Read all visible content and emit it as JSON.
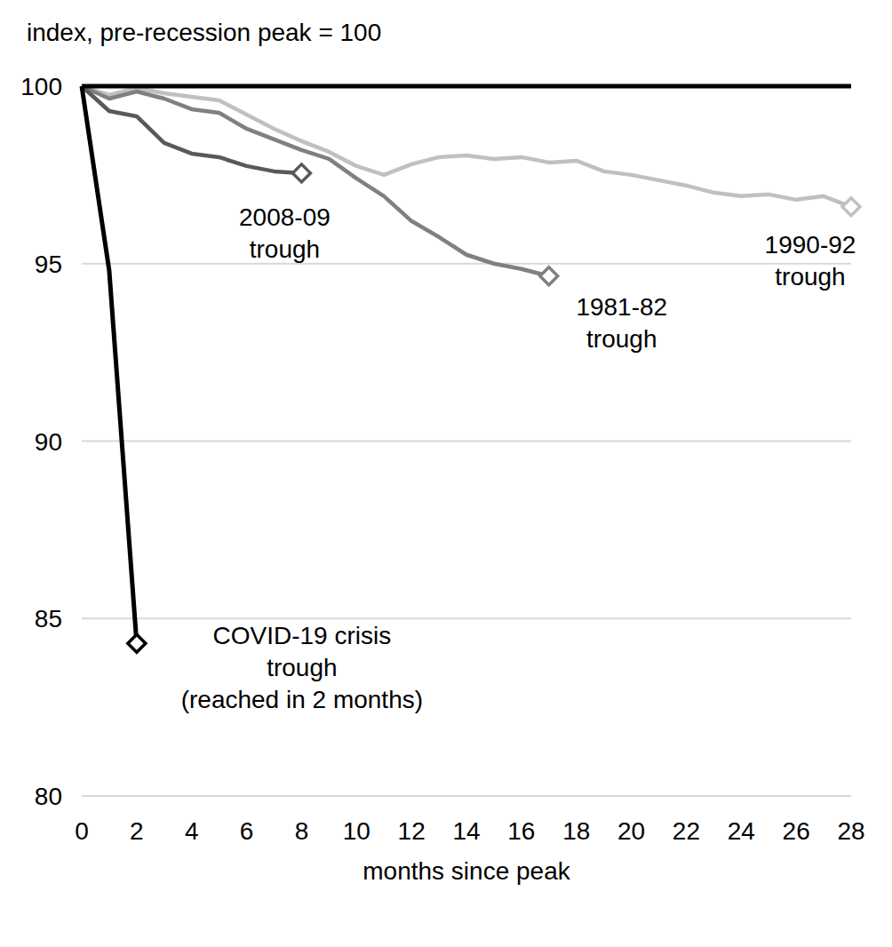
{
  "chart_data": {
    "type": "line",
    "y_label": "index, pre-recession peak = 100",
    "x_label": "months since peak",
    "x": [
      0,
      1,
      2,
      3,
      4,
      5,
      6,
      7,
      8,
      9,
      10,
      11,
      12,
      13,
      14,
      15,
      16,
      17,
      18,
      19,
      20,
      21,
      22,
      23,
      24,
      25,
      26,
      27,
      28
    ],
    "xlim": [
      0,
      28
    ],
    "xticks": [
      0,
      2,
      4,
      6,
      8,
      10,
      12,
      14,
      16,
      18,
      20,
      22,
      24,
      26,
      28
    ],
    "ylim": [
      80,
      100
    ],
    "yticks": [
      80,
      85,
      90,
      95,
      100
    ],
    "grid": true,
    "series": [
      {
        "color": "#000000",
        "marker": "diamond",
        "values": [
          100,
          94.8,
          84.3,
          null,
          null,
          null,
          null,
          null,
          null,
          null,
          null,
          null,
          null,
          null,
          null,
          null,
          null,
          null,
          null,
          null,
          null,
          null,
          null,
          null,
          null,
          null,
          null,
          null,
          null
        ]
      },
      {
        "color": "#595959",
        "marker": "diamond",
        "values": [
          100,
          99.3,
          99.15,
          98.4,
          98.1,
          98.0,
          97.75,
          97.6,
          97.55,
          null,
          null,
          null,
          null,
          null,
          null,
          null,
          null,
          null,
          null,
          null,
          null,
          null,
          null,
          null,
          null,
          null,
          null,
          null,
          null
        ]
      },
      {
        "color": "#808080",
        "marker": "diamond",
        "values": [
          100,
          99.65,
          99.85,
          99.65,
          99.35,
          99.25,
          98.8,
          98.5,
          98.2,
          97.95,
          97.4,
          96.9,
          96.2,
          95.75,
          95.25,
          95.0,
          94.85,
          94.65,
          null,
          null,
          null,
          null,
          null,
          null,
          null,
          null,
          null,
          null,
          null
        ]
      },
      {
        "color": "#c0c0c0",
        "marker": "diamond",
        "values": [
          100,
          99.75,
          99.95,
          99.8,
          99.7,
          99.6,
          99.2,
          98.8,
          98.45,
          98.15,
          97.75,
          97.5,
          97.8,
          98.0,
          98.05,
          97.95,
          98.0,
          97.85,
          97.9,
          97.6,
          97.5,
          97.35,
          97.2,
          97.0,
          96.9,
          96.95,
          96.8,
          96.9,
          96.6
        ]
      }
    ],
    "annotations": [
      {
        "lines": [
          "COVID-19 crisis",
          "trough",
          "(reached in 2 months)"
        ]
      },
      {
        "lines": [
          "2008-09",
          "trough"
        ]
      },
      {
        "lines": [
          "1981-82",
          "trough"
        ]
      },
      {
        "lines": [
          "1990-92",
          "trough"
        ]
      }
    ]
  }
}
